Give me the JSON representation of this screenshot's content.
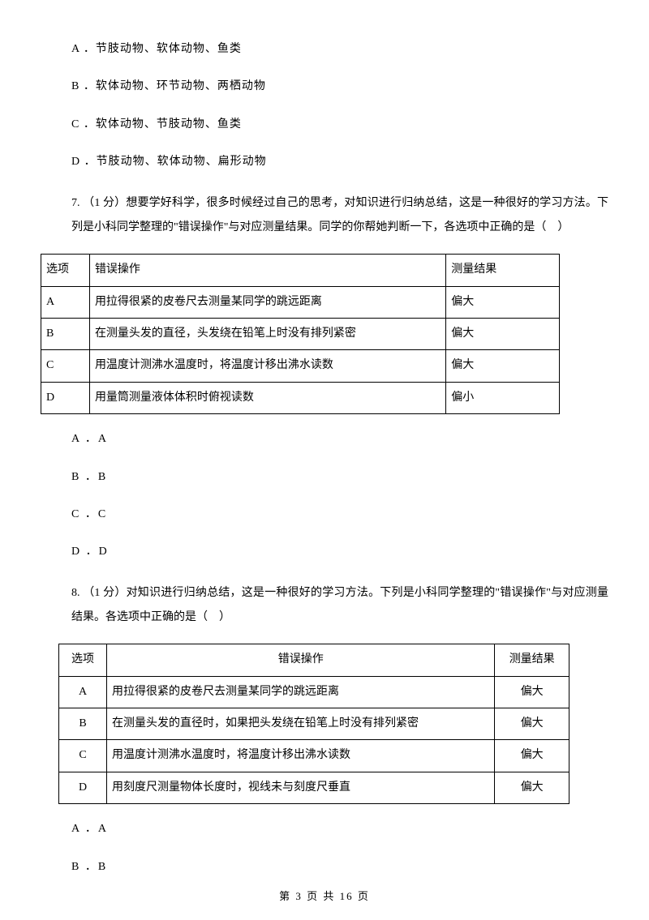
{
  "q6_options": {
    "A": "A ．节肢动物、软体动物、鱼类",
    "B": "B ．软体动物、环节动物、两栖动物",
    "C": "C ．软体动物、节肢动物、鱼类",
    "D": "D ．节肢动物、软体动物、扁形动物"
  },
  "q7": {
    "stem": "7.  （1 分）想要学好科学，很多时候经过自己的思考，对知识进行归纳总结，这是一种很好的学习方法。下列是小科同学整理的\"错误操作\"与对应测量结果。同学的你帮她判断一下，各选项中正确的是（　）",
    "table": {
      "headers": {
        "c1": "选项",
        "c2": "错误操作",
        "c3": "测量结果"
      },
      "rows": [
        {
          "c1": "A",
          "c2": "用拉得很紧的皮卷尺去测量某同学的跳远距离",
          "c3": "偏大"
        },
        {
          "c1": "B",
          "c2": "在测量头发的直径，头发绕在铅笔上时没有排列紧密",
          "c3": "偏大"
        },
        {
          "c1": "C",
          "c2": "用温度计测沸水温度时，将温度计移出沸水读数",
          "c3": "偏大"
        },
        {
          "c1": "D",
          "c2": "用量筒测量液体体积时俯视读数",
          "c3": "偏小"
        }
      ]
    },
    "options": {
      "A": "A ．A",
      "B": "B ．B",
      "C": "C ．C",
      "D": "D ．D"
    }
  },
  "q8": {
    "stem": "8.  （1 分）对知识进行归纳总结，这是一种很好的学习方法。下列是小科同学整理的\"错误操作\"与对应测量结果。各选项中正确的是（　）",
    "table": {
      "headers": {
        "c1": "选项",
        "c2": "错误操作",
        "c3": "测量结果"
      },
      "rows": [
        {
          "c1": "A",
          "c2": "用拉得很紧的皮卷尺去测量某同学的跳远距离",
          "c3": "偏大"
        },
        {
          "c1": "B",
          "c2": "在测量头发的直径时，如果把头发绕在铅笔上时没有排列紧密",
          "c3": "偏大"
        },
        {
          "c1": "C",
          "c2": "用温度计测沸水温度时，将温度计移出沸水读数",
          "c3": "偏大"
        },
        {
          "c1": "D",
          "c2": "用刻度尺测量物体长度时，视线未与刻度尺垂直",
          "c3": "偏大"
        }
      ]
    },
    "options": {
      "A": "A ．A",
      "B": "B ．B"
    }
  },
  "footer": "第 3 页 共 16 页"
}
